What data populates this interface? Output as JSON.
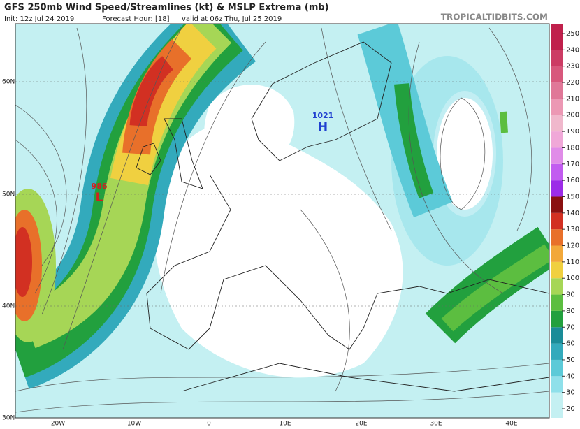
{
  "header": {
    "title": "GFS 250mb Wind Speed/Streamlines (kt) & MSLP Extrema (mb)",
    "init": "Init: 12z Jul 24 2019",
    "forecast": "Forecast Hour: [18]",
    "valid": "valid at 06z Thu, Jul 25 2019",
    "watermark": "TROPICALTIDBITS.COM"
  },
  "latitude_labels": [
    "60N",
    "50N",
    "40N",
    "30N"
  ],
  "longitude_labels": [
    "20W",
    "10W",
    "0",
    "10E",
    "20E",
    "30E",
    "40E"
  ],
  "pressure_centers": [
    {
      "value": 986,
      "symbol": "L",
      "color": "#d02020"
    },
    {
      "value": 1021,
      "symbol": "H",
      "color": "#2040d0"
    }
  ],
  "colorbar": {
    "ticks": [
      20,
      30,
      40,
      50,
      60,
      70,
      80,
      90,
      100,
      110,
      120,
      130,
      140,
      150,
      160,
      170,
      180,
      190,
      200,
      210,
      220,
      230,
      240,
      250
    ],
    "colors": [
      "#c4f0f2",
      "#8fe0ea",
      "#5ccad8",
      "#33aabc",
      "#1a8c98",
      "#22a03e",
      "#5cbe40",
      "#a6d656",
      "#f0d040",
      "#f2a83a",
      "#e8702a",
      "#d23022",
      "#8a1010",
      "#9c2ce8",
      "#c25cf0",
      "#e08ce8",
      "#f0a8d8",
      "#f0b8cc",
      "#ec98b4",
      "#e07898",
      "#d8587c",
      "#cc3c64",
      "#c0204c"
    ]
  }
}
